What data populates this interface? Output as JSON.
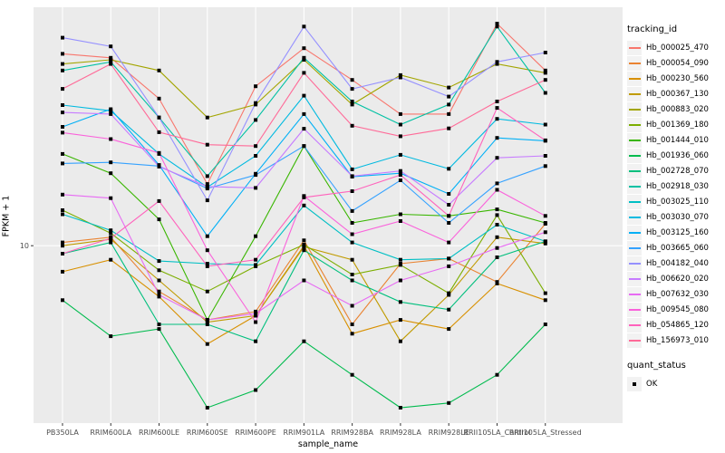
{
  "figure": {
    "xlabel": "sample_name",
    "ylabel": "FPKM + 1",
    "legend_title": "tracking_id",
    "quant_legend_title": "quant_status",
    "quant_ok_label": "OK"
  },
  "chart_data": {
    "type": "line",
    "title": "",
    "xlabel": "sample_name",
    "ylabel": "FPKM + 1",
    "y_scale": "log10",
    "y_ticks": [
      10
    ],
    "ylim": [
      2.0,
      87
    ],
    "grid": true,
    "legend_position": "right",
    "point_marker": {
      "shape": "square",
      "color": "#000000",
      "status_label": "OK"
    },
    "panel_background": "#EBEBEB",
    "categories": [
      "PB350LA",
      "RRIM600LA",
      "RRIM600LE",
      "RRIM600SE",
      "RRIM600PE",
      "RRIM901LA",
      "RRIM928BA",
      "RRIM928LA",
      "RRIM928LE",
      "RRII105LA_Control",
      "RRII105LA_Stressed"
    ],
    "series": [
      {
        "name": "Hb_000025_470",
        "color": "#F8766D",
        "values": [
          57,
          55,
          38,
          17.5,
          42.5,
          60,
          45,
          33,
          33,
          75,
          49
        ]
      },
      {
        "name": "Hb_000054_090",
        "color": "#EA8331",
        "values": [
          10.3,
          10.8,
          6.6,
          5.1,
          5.5,
          10.5,
          4.9,
          8.5,
          8.9,
          7.2,
          12.2
        ]
      },
      {
        "name": "Hb_000230_560",
        "color": "#D89000",
        "values": [
          7.9,
          8.8,
          6.3,
          4.1,
          5.3,
          10.0,
          4.5,
          5.1,
          4.7,
          7.1,
          6.1
        ]
      },
      {
        "name": "Hb_000367_130",
        "color": "#C09B00",
        "values": [
          10.0,
          10.6,
          7.3,
          5.0,
          5.3,
          9.9,
          8.8,
          4.2,
          6.4,
          10.8,
          10.2
        ]
      },
      {
        "name": "Hb_000883_020",
        "color": "#A3A500",
        "values": [
          52,
          54,
          49,
          32,
          36,
          54,
          36,
          47,
          42,
          52,
          48
        ]
      },
      {
        "name": "Hb_001369_180",
        "color": "#7CAE00",
        "values": [
          13.8,
          11.2,
          8.0,
          6.6,
          8.3,
          10.1,
          7.7,
          8.4,
          6.5,
          13.2,
          6.5
        ]
      },
      {
        "name": "Hb_001444_010",
        "color": "#39B600",
        "values": [
          23,
          19.3,
          12.7,
          5.1,
          10.9,
          24.7,
          12.3,
          13.3,
          13.1,
          13.9,
          12.3
        ]
      },
      {
        "name": "Hb_001936_060",
        "color": "#00BB4E",
        "values": [
          6.1,
          4.4,
          4.7,
          2.3,
          2.7,
          4.2,
          3.1,
          2.3,
          2.4,
          3.1,
          4.9
        ]
      },
      {
        "name": "Hb_002728_070",
        "color": "#00BF7D",
        "values": [
          9.3,
          10.3,
          4.9,
          4.9,
          4.2,
          9.6,
          7.3,
          6.0,
          5.6,
          9.0,
          10.4
        ]
      },
      {
        "name": "Hb_002918_030",
        "color": "#00C1A3",
        "values": [
          49,
          53,
          32,
          18.8,
          31.3,
          55,
          37,
          30,
          36,
          73,
          40
        ]
      },
      {
        "name": "Hb_003025_110",
        "color": "#00BFC4",
        "values": [
          13.3,
          11.5,
          8.7,
          8.5,
          8.4,
          14.4,
          10.3,
          8.8,
          8.9,
          12.1,
          10.4
        ]
      },
      {
        "name": "Hb_003030_070",
        "color": "#00BAE0",
        "values": [
          35.8,
          34,
          23,
          17,
          22.6,
          39,
          20,
          22.8,
          20.1,
          31.6,
          30
        ]
      },
      {
        "name": "Hb_003125_160",
        "color": "#00B0F6",
        "values": [
          29.4,
          34.5,
          20.8,
          10.9,
          19.2,
          33,
          18.7,
          19.3,
          16,
          26.6,
          25.9
        ]
      },
      {
        "name": "Hb_003665_060",
        "color": "#35A2FF",
        "values": [
          21.1,
          21.3,
          20.6,
          16.8,
          19,
          24.7,
          13.7,
          18.1,
          12.3,
          17.6,
          20.6
        ]
      },
      {
        "name": "Hb_004182_040",
        "color": "#9590FF",
        "values": [
          66,
          61,
          32,
          15.1,
          36.5,
          73,
          41.5,
          46,
          38.7,
          53,
          57.7
        ]
      },
      {
        "name": "Hb_006620_020",
        "color": "#C77CFF",
        "values": [
          33.5,
          33,
          20.5,
          17.1,
          16.9,
          28.9,
          18.8,
          19.7,
          14.5,
          22.2,
          22.6
        ]
      },
      {
        "name": "Hb_007632_030",
        "color": "#E76BF3",
        "values": [
          15.9,
          15.4,
          6.4,
          5.1,
          5.4,
          7.3,
          5.8,
          7.3,
          8.3,
          9.8,
          11.3
        ]
      },
      {
        "name": "Hb_009545_080",
        "color": "#FA62DB",
        "values": [
          27.9,
          26.3,
          23.2,
          9.6,
          5.0,
          15.7,
          11.1,
          12.5,
          10.3,
          16.6,
          13.1
        ]
      },
      {
        "name": "Hb_054865_120",
        "color": "#FF62BC",
        "values": [
          9.3,
          10.7,
          15.0,
          8.3,
          8.8,
          15.5,
          16.4,
          19.0,
          13.1,
          34.9,
          26.0
        ]
      },
      {
        "name": "Hb_156973_010",
        "color": "#FF6A98",
        "values": [
          41.5,
          52,
          28,
          25,
          24.7,
          48,
          29.7,
          27,
          29,
          37,
          45
        ]
      }
    ]
  }
}
